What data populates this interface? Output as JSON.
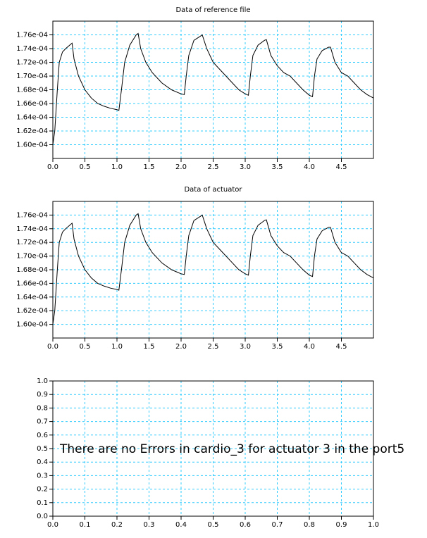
{
  "chart_data": [
    {
      "type": "line",
      "title": "Data of reference file",
      "color": "#000000",
      "grid": true,
      "grid_color": "#33ccff",
      "xlim": [
        0,
        5
      ],
      "ylim": [
        0.000158,
        0.000178
      ],
      "xticks": [
        {
          "value": 0,
          "label": "0.0"
        },
        0.5,
        {
          "value": 1,
          "label": "1.0"
        },
        1.5,
        {
          "value": 2,
          "label": "2.0"
        },
        2.5,
        {
          "value": 3,
          "label": "3.0"
        },
        3.5,
        {
          "value": 4,
          "label": "4.0"
        },
        4.5
      ],
      "yticks": [
        {
          "value": 0.00016,
          "label": "1.60e-04"
        },
        {
          "value": 0.000162,
          "label": "1.62e-04"
        },
        {
          "value": 0.000164,
          "label": "1.64e-04"
        },
        {
          "value": 0.000166,
          "label": "1.66e-04"
        },
        {
          "value": 0.000168,
          "label": "1.68e-04"
        },
        {
          "value": 0.00017,
          "label": "1.70e-04"
        },
        {
          "value": 0.000172,
          "label": "1.72e-04"
        },
        {
          "value": 0.000174,
          "label": "1.74e-04"
        },
        {
          "value": 0.000176,
          "label": "1.76e-04"
        }
      ],
      "x": [
        0,
        0.03,
        0.07,
        0.1,
        0.15,
        0.2,
        0.3,
        0.33,
        0.4,
        0.5,
        0.6,
        0.7,
        0.8,
        0.9,
        1.0,
        1.03,
        1.07,
        1.12,
        1.2,
        1.3,
        1.33,
        1.37,
        1.45,
        1.55,
        1.7,
        1.85,
        2.0,
        2.05,
        2.08,
        2.12,
        2.2,
        2.3,
        2.33,
        2.4,
        2.5,
        2.6,
        2.7,
        2.75,
        2.9,
        3.0,
        3.05,
        3.08,
        3.12,
        3.2,
        3.3,
        3.33,
        3.4,
        3.5,
        3.6,
        3.7,
        3.8,
        3.9,
        4.0,
        4.05,
        4.08,
        4.12,
        4.2,
        4.3,
        4.33,
        4.4,
        4.5,
        4.6,
        4.7,
        4.8,
        4.9,
        5.0
      ],
      "values": [
        0.00016,
        0.000162,
        0.000168,
        0.000172,
        0.0001735,
        0.000174,
        0.0001748,
        0.0001725,
        0.00017,
        0.000168,
        0.0001668,
        0.000166,
        0.0001656,
        0.0001653,
        0.0001651,
        0.000165,
        0.000168,
        0.000172,
        0.0001745,
        0.000176,
        0.0001762,
        0.000174,
        0.000172,
        0.0001705,
        0.000169,
        0.000168,
        0.0001674,
        0.0001673,
        0.00017,
        0.000173,
        0.0001752,
        0.0001758,
        0.000176,
        0.000174,
        0.000172,
        0.000171,
        0.00017,
        0.0001695,
        0.000168,
        0.0001674,
        0.0001672,
        0.00017,
        0.000173,
        0.0001745,
        0.0001752,
        0.0001753,
        0.000173,
        0.0001715,
        0.0001705,
        0.00017,
        0.000169,
        0.000168,
        0.0001672,
        0.000167,
        0.00017,
        0.0001725,
        0.0001737,
        0.0001742,
        0.0001742,
        0.000172,
        0.0001705,
        0.00017,
        0.000169,
        0.000168,
        0.0001673,
        0.0001668
      ]
    },
    {
      "type": "line",
      "title": "Data of actuator",
      "color": "#000000",
      "grid": true,
      "grid_color": "#33ccff",
      "xlim": [
        0,
        5
      ],
      "ylim": [
        0.000158,
        0.000178
      ],
      "xticks": [
        {
          "value": 0,
          "label": "0.0"
        },
        0.5,
        {
          "value": 1,
          "label": "1.0"
        },
        1.5,
        {
          "value": 2,
          "label": "2.0"
        },
        2.5,
        {
          "value": 3,
          "label": "3.0"
        },
        3.5,
        {
          "value": 4,
          "label": "4.0"
        },
        4.5
      ],
      "yticks": [
        {
          "value": 0.00016,
          "label": "1.60e-04"
        },
        {
          "value": 0.000162,
          "label": "1.62e-04"
        },
        {
          "value": 0.000164,
          "label": "1.64e-04"
        },
        {
          "value": 0.000166,
          "label": "1.66e-04"
        },
        {
          "value": 0.000168,
          "label": "1.68e-04"
        },
        {
          "value": 0.00017,
          "label": "1.70e-04"
        },
        {
          "value": 0.000172,
          "label": "1.72e-04"
        },
        {
          "value": 0.000174,
          "label": "1.74e-04"
        },
        {
          "value": 0.000176,
          "label": "1.76e-04"
        }
      ],
      "x": [
        0,
        0.03,
        0.07,
        0.1,
        0.15,
        0.2,
        0.3,
        0.33,
        0.4,
        0.5,
        0.6,
        0.7,
        0.8,
        0.9,
        1.0,
        1.03,
        1.07,
        1.12,
        1.2,
        1.3,
        1.33,
        1.37,
        1.45,
        1.55,
        1.7,
        1.85,
        2.0,
        2.05,
        2.08,
        2.12,
        2.2,
        2.3,
        2.33,
        2.4,
        2.5,
        2.6,
        2.7,
        2.75,
        2.9,
        3.0,
        3.05,
        3.08,
        3.12,
        3.2,
        3.3,
        3.33,
        3.4,
        3.5,
        3.6,
        3.7,
        3.8,
        3.9,
        4.0,
        4.05,
        4.08,
        4.12,
        4.2,
        4.3,
        4.33,
        4.4,
        4.5,
        4.6,
        4.7,
        4.8,
        4.9,
        5.0
      ],
      "values": [
        0.00016,
        0.000162,
        0.000168,
        0.000172,
        0.0001735,
        0.000174,
        0.0001748,
        0.0001725,
        0.00017,
        0.000168,
        0.0001668,
        0.000166,
        0.0001656,
        0.0001653,
        0.0001651,
        0.000165,
        0.000168,
        0.000172,
        0.0001745,
        0.000176,
        0.0001762,
        0.000174,
        0.000172,
        0.0001705,
        0.000169,
        0.000168,
        0.0001674,
        0.0001673,
        0.00017,
        0.000173,
        0.0001752,
        0.0001758,
        0.000176,
        0.000174,
        0.000172,
        0.000171,
        0.00017,
        0.0001695,
        0.000168,
        0.0001674,
        0.0001672,
        0.00017,
        0.000173,
        0.0001745,
        0.0001752,
        0.0001753,
        0.000173,
        0.0001715,
        0.0001705,
        0.00017,
        0.000169,
        0.000168,
        0.0001672,
        0.000167,
        0.00017,
        0.0001725,
        0.0001737,
        0.0001742,
        0.0001742,
        0.000172,
        0.0001705,
        0.00017,
        0.000169,
        0.000168,
        0.0001673,
        0.0001668
      ]
    },
    {
      "type": "line",
      "annotation": "There are no Errors in cardio_3 for actuator 3 in the port5",
      "grid": true,
      "grid_color": "#33ccff",
      "xlim": [
        0,
        1
      ],
      "ylim": [
        0,
        1
      ],
      "xticks": [
        {
          "value": 0,
          "label": "0.0"
        },
        0.1,
        0.2,
        0.3,
        0.4,
        0.5,
        0.6,
        0.7,
        0.8,
        0.9,
        {
          "value": 1,
          "label": "1.0"
        }
      ],
      "yticks": [
        {
          "value": 0,
          "label": "0.0"
        },
        0.1,
        0.2,
        0.3,
        0.4,
        0.5,
        0.6,
        0.7,
        0.8,
        0.9,
        {
          "value": 1,
          "label": "1.0"
        }
      ]
    }
  ]
}
